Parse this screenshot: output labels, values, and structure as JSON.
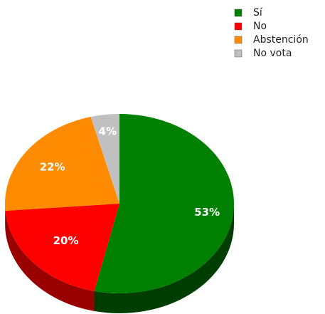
{
  "chart_data": {
    "type": "pie",
    "style": "3d",
    "categories": [
      "Sí",
      "No",
      "Abstención",
      "No vota"
    ],
    "values": [
      53,
      20,
      22,
      4
    ],
    "value_labels": [
      "53%",
      "20%",
      "22%",
      "4%"
    ],
    "colors": [
      "#008000",
      "#ff0000",
      "#ff8c00",
      "#c0c0c0"
    ],
    "side_colors": [
      "#003d00",
      "#990000",
      "#b36200",
      "#808080"
    ],
    "title": "",
    "legend": {
      "position": "top-right"
    }
  }
}
